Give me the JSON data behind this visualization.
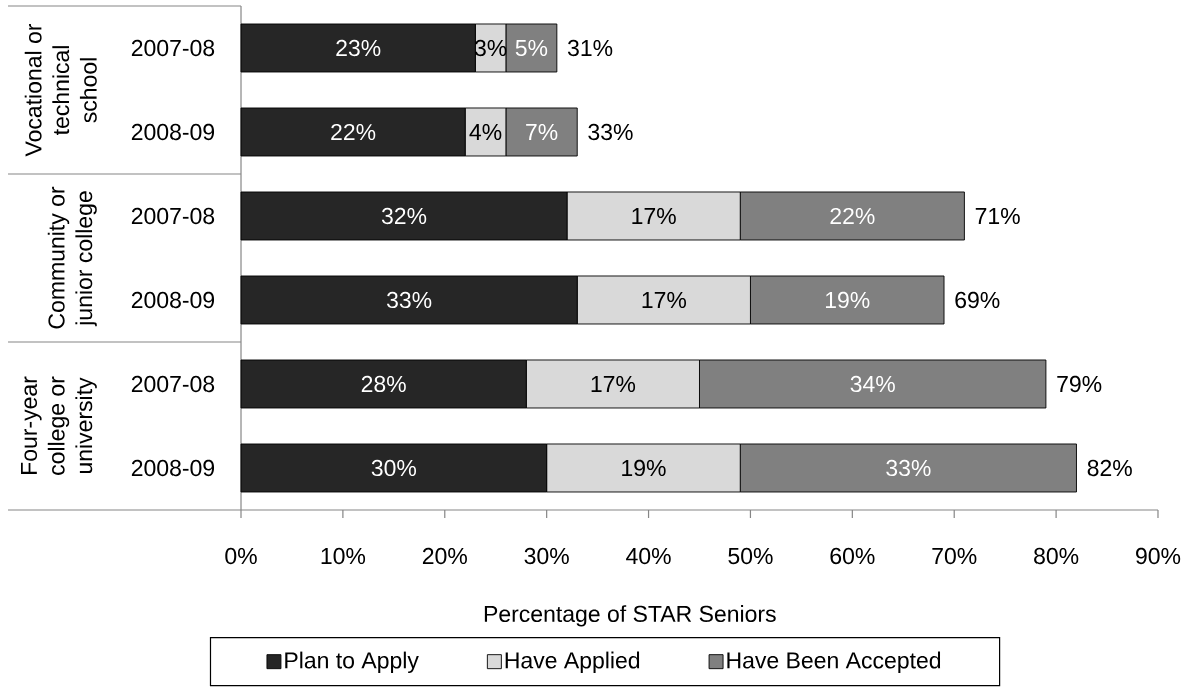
{
  "chart_data": {
    "type": "bar",
    "orientation": "horizontal",
    "stacked": true,
    "categories": [
      "2007-08",
      "2008-09",
      "2007-08",
      "2008-09",
      "2007-08",
      "2008-09"
    ],
    "series": [
      {
        "name": "Plan to Apply",
        "color": "#262626",
        "values": [
          23,
          22,
          32,
          33,
          28,
          30
        ],
        "value_labels": [
          "23%",
          "22%",
          "32%",
          "33%",
          "28%",
          "30%"
        ]
      },
      {
        "name": "Have Applied",
        "color": "#d9d9d9",
        "values": [
          3,
          4,
          17,
          17,
          17,
          19
        ],
        "value_labels": [
          "3%",
          "4%",
          "17%",
          "17%",
          "17%",
          "19%"
        ]
      },
      {
        "name": "Have Been Accepted",
        "color": "#808080",
        "values": [
          5,
          7,
          22,
          19,
          34,
          33
        ],
        "value_labels": [
          "5%",
          "7%",
          "22%",
          "19%",
          "34%",
          "33%"
        ]
      }
    ],
    "totals": [
      "31%",
      "33%",
      "71%",
      "69%",
      "79%",
      "82%"
    ],
    "xlabel": "Percentage of STAR Seniors",
    "xlim": [
      0,
      90
    ],
    "xticks": [
      {
        "value": 0,
        "label": "0%"
      },
      {
        "value": 10,
        "label": "10%"
      },
      {
        "value": 20,
        "label": "20%"
      },
      {
        "value": 30,
        "label": "30%"
      },
      {
        "value": 40,
        "label": "40%"
      },
      {
        "value": 50,
        "label": "50%"
      },
      {
        "value": 60,
        "label": "60%"
      },
      {
        "value": 70,
        "label": "70%"
      },
      {
        "value": 80,
        "label": "80%"
      },
      {
        "value": 90,
        "label": "90%"
      }
    ],
    "annotations": [
      "Vocational or technical school",
      "Community or junior college",
      "Four-year college or university"
    ],
    "legend": "bottom"
  }
}
